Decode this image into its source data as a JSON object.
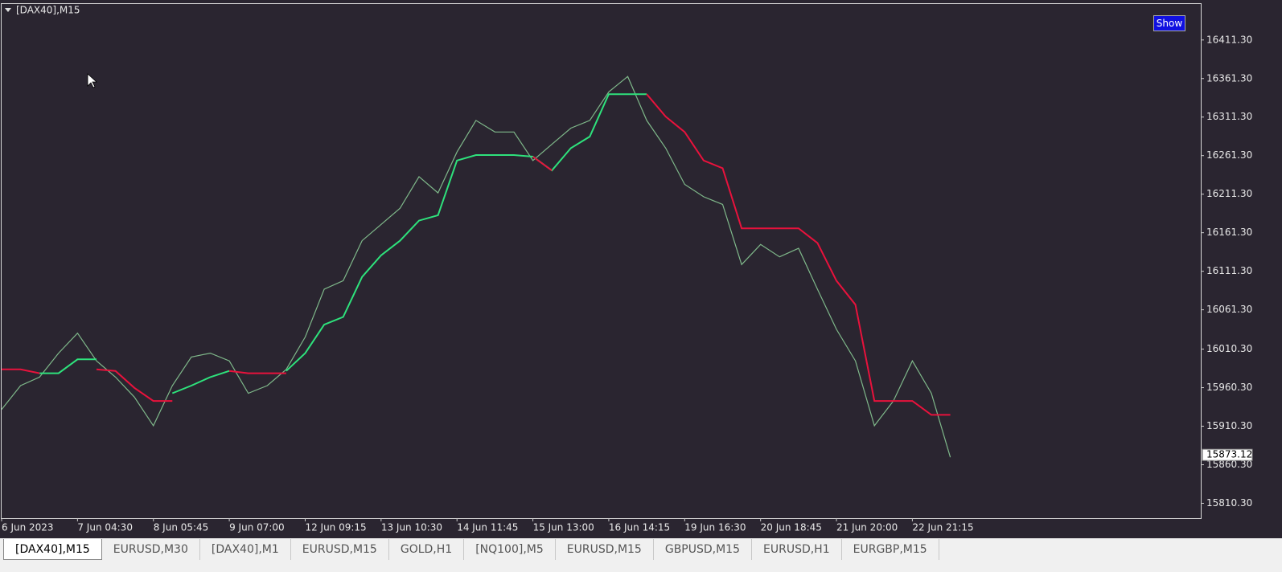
{
  "header": {
    "title": "[DAX40],M15",
    "button": "Show"
  },
  "tabs": [
    "[DAX40],M15",
    "EURUSD,M30",
    "[DAX40],M1",
    "EURUSD,M15",
    "GOLD,H1",
    "[NQ100],M5",
    "EURUSD,M15",
    "GBPUSD,M15",
    "EURUSD,H1",
    "EURGBP,M15"
  ],
  "chart_data": {
    "type": "line",
    "x": [
      0,
      1,
      2,
      3,
      4,
      5,
      6,
      7,
      8,
      9,
      10,
      11,
      12,
      13,
      14,
      15,
      16,
      17,
      18,
      19,
      20,
      21,
      22,
      23,
      24,
      25,
      26,
      27,
      28,
      29,
      30,
      31,
      32,
      33,
      34,
      35,
      36,
      37,
      38,
      39,
      40,
      41,
      42,
      43,
      44,
      45,
      46,
      47,
      48,
      49,
      50
    ],
    "series": [
      {
        "color": "#7fb88a",
        "values": [
          15932,
          15963,
          15974,
          16005,
          16031,
          15995,
          15974,
          15948,
          15911,
          15963,
          16000,
          16005,
          15995,
          15953,
          15963,
          15984,
          16026,
          16088,
          16099,
          16151,
          16172,
          16193,
          16234,
          16213,
          16266,
          16307,
          16292,
          16292,
          16255,
          16276,
          16297,
          16307,
          16344,
          16364,
          16307,
          16271,
          16224,
          16208,
          16198,
          16120,
          16146,
          16130,
          16141,
          16088,
          16036,
          15995,
          15911,
          15943,
          15995,
          15953,
          15870
        ]
      },
      {
        "color": "#2ee27c",
        "values": [
          null,
          null,
          15979,
          15979,
          15997,
          15997,
          null,
          null,
          null,
          15953,
          15963,
          15974,
          15982,
          null,
          null,
          15982,
          16005,
          16042,
          16052,
          16104,
          16132,
          16151,
          16177,
          16184,
          16255,
          16262,
          16262,
          16262,
          16260,
          16242,
          16271,
          16286,
          16341,
          16341,
          16341,
          null,
          null,
          null,
          null,
          null,
          null,
          null,
          null,
          null,
          null,
          null,
          null,
          null,
          null,
          null,
          null
        ]
      },
      {
        "color": "#e8123c",
        "values": [
          15984,
          15984,
          15979,
          null,
          null,
          15984,
          15982,
          15960,
          15943,
          15943,
          null,
          null,
          15982,
          15979,
          15979,
          15979,
          null,
          null,
          null,
          null,
          null,
          null,
          null,
          null,
          null,
          null,
          null,
          null,
          16260,
          16242,
          null,
          null,
          null,
          null,
          16341,
          16312,
          16292,
          16255,
          16245,
          16167,
          16167,
          16167,
          16167,
          16148,
          16099,
          16068,
          15943,
          15943,
          15943,
          15925,
          15925
        ]
      }
    ],
    "xlim": [
      0,
      63.2
    ],
    "xticks": [
      {
        "value": 0,
        "label": "6 Jun 2023"
      },
      {
        "value": 4,
        "label": "7 Jun 04:30"
      },
      {
        "value": 8,
        "label": "8 Jun 05:45"
      },
      {
        "value": 12,
        "label": "9 Jun 07:00"
      },
      {
        "value": 16,
        "label": "12 Jun 09:15"
      },
      {
        "value": 20,
        "label": "13 Jun 10:30"
      },
      {
        "value": 24,
        "label": "14 Jun 11:45"
      },
      {
        "value": 28,
        "label": "15 Jun 13:00"
      },
      {
        "value": 32,
        "label": "16 Jun 14:15"
      },
      {
        "value": 36,
        "label": "19 Jun 16:30"
      },
      {
        "value": 40,
        "label": "20 Jun 18:45"
      },
      {
        "value": 44,
        "label": "21 Jun 20:00"
      },
      {
        "value": 48,
        "label": "22 Jun 21:15"
      }
    ],
    "ylim": [
      15791,
      16459
    ],
    "yticks": [
      {
        "value": 16411.3,
        "label": "16411.30"
      },
      {
        "value": 16361.3,
        "label": "16361.30"
      },
      {
        "value": 16311.3,
        "label": "16311.30"
      },
      {
        "value": 16261.3,
        "label": "16261.30"
      },
      {
        "value": 16211.3,
        "label": "16211.30"
      },
      {
        "value": 16161.3,
        "label": "16161.30"
      },
      {
        "value": 16111.3,
        "label": "16111.30"
      },
      {
        "value": 16061.3,
        "label": "16061.30"
      },
      {
        "value": 16010.3,
        "label": "16010.30"
      },
      {
        "value": 15960.3,
        "label": "15960.30"
      },
      {
        "value": 15910.3,
        "label": "15910.30"
      },
      {
        "value": 15860.3,
        "label": "15860.30"
      },
      {
        "value": 15810.3,
        "label": "15810.30"
      }
    ],
    "last_price": 15873.12
  }
}
